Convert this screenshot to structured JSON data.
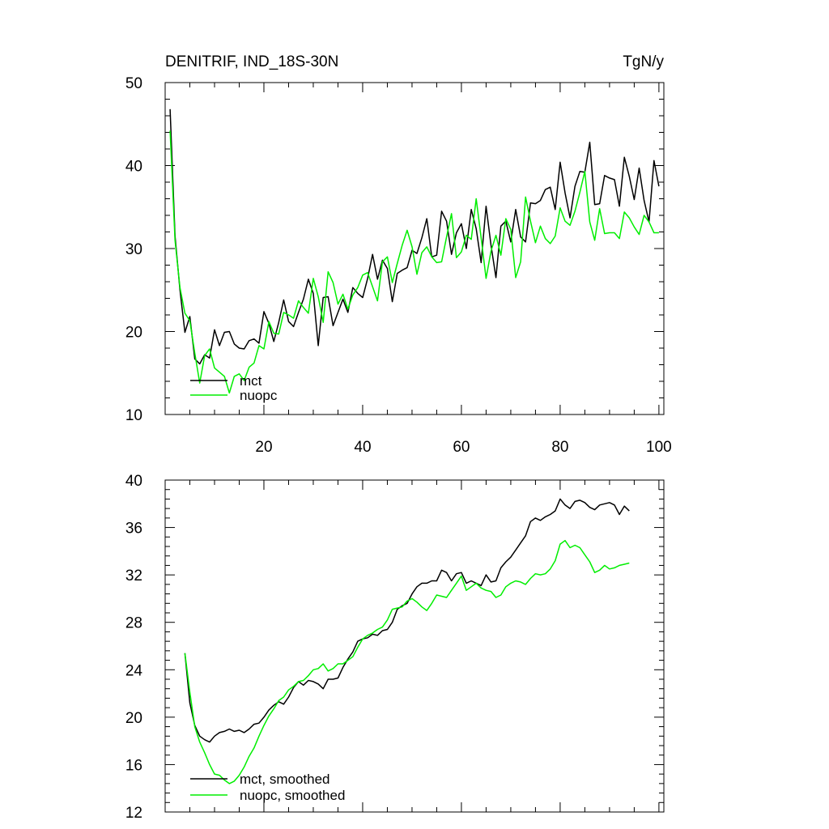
{
  "chart_data": [
    {
      "type": "line",
      "title": "DENITRIF, IND_18S-30N",
      "units": "TgN/y",
      "xlim": [
        0,
        101
      ],
      "ylim": [
        10,
        50
      ],
      "xticks": [
        20,
        40,
        60,
        80,
        100
      ],
      "xtick_labels": [
        "20",
        "40",
        "60",
        "80",
        "100"
      ],
      "yticks": [
        10,
        20,
        30,
        40,
        50
      ],
      "ytick_labels": [
        "10",
        "20",
        "30",
        "40",
        "50"
      ],
      "legend_position": "bottom-left",
      "series": [
        {
          "name": "mct",
          "color": "#000000",
          "values": [
            46.8,
            31.5,
            25.0,
            19.9,
            21.8,
            16.7,
            16.1,
            17.2,
            16.8,
            20.2,
            18.3,
            19.9,
            20.0,
            18.5,
            18.0,
            17.9,
            18.9,
            19.1,
            18.6,
            22.4,
            21.0,
            18.8,
            21.1,
            23.8,
            21.2,
            20.6,
            22.3,
            23.9,
            26.3,
            24.6,
            18.3,
            24.1,
            24.2,
            20.7,
            22.3,
            23.9,
            22.3,
            25.3,
            24.6,
            24.1,
            26.4,
            29.3,
            26.3,
            28.6,
            27.6,
            23.6,
            27.0,
            27.4,
            27.7,
            29.8,
            29.4,
            31.3,
            33.6,
            29.0,
            29.2,
            34.5,
            33.3,
            29.3,
            31.9,
            33.0,
            30.0,
            34.7,
            32.4,
            28.3,
            35.1,
            30.4,
            26.5,
            32.7,
            33.3,
            30.8,
            34.7,
            31.4,
            30.8,
            35.5,
            35.4,
            35.8,
            37.1,
            37.4,
            34.7,
            40.4,
            36.7,
            33.7,
            37.5,
            39.3,
            39.2,
            42.8,
            35.3,
            35.4,
            38.8,
            38.5,
            38.3,
            35.1,
            41.0,
            38.7,
            35.9,
            39.7,
            35.8,
            33.2,
            40.6,
            37.5
          ]
        },
        {
          "name": "nuopc",
          "color": "#00ee00",
          "values": [
            44.2,
            31.0,
            25.3,
            22.2,
            21.3,
            17.4,
            13.8,
            17.1,
            17.9,
            15.6,
            15.1,
            14.6,
            12.6,
            14.6,
            14.9,
            14.1,
            15.7,
            16.2,
            18.3,
            17.9,
            21.2,
            19.8,
            19.7,
            22.3,
            22.0,
            21.6,
            23.7,
            22.9,
            22.2,
            26.4,
            24.2,
            21.1,
            27.2,
            25.9,
            23.3,
            24.5,
            22.7,
            24.4,
            25.3,
            26.8,
            27.1,
            25.4,
            23.7,
            28.4,
            29.0,
            25.9,
            28.2,
            30.4,
            32.2,
            30.2,
            26.9,
            29.5,
            30.2,
            29.0,
            28.3,
            28.4,
            31.4,
            34.2,
            28.9,
            29.6,
            31.6,
            31.1,
            36.0,
            31.3,
            26.4,
            29.7,
            31.6,
            29.2,
            33.6,
            32.3,
            26.5,
            28.4,
            36.2,
            33.3,
            30.7,
            32.7,
            31.2,
            30.6,
            31.5,
            34.9,
            33.3,
            32.8,
            34.5,
            36.8,
            39.3,
            33.2,
            31.0,
            34.8,
            31.8,
            31.9,
            31.9,
            31.2,
            34.4,
            33.7,
            32.6,
            31.7,
            34.0,
            33.2,
            31.9,
            31.9
          ]
        }
      ]
    },
    {
      "type": "line",
      "title": "",
      "xlim": [
        0,
        101
      ],
      "ylim": [
        12,
        40
      ],
      "xticks": [
        20,
        40,
        60,
        80,
        100
      ],
      "xtick_labels": [],
      "yticks": [
        12,
        16,
        20,
        24,
        28,
        32,
        36,
        40
      ],
      "ytick_labels": [
        "12",
        "16",
        "20",
        "24",
        "28",
        "32",
        "36",
        "40"
      ],
      "legend_position": "bottom-left",
      "series": [
        {
          "name": "mct, smoothed",
          "color": "#000000",
          "x_start": 4,
          "values": [
            25.4,
            21.2,
            19.3,
            18.4,
            18.1,
            17.9,
            18.4,
            18.7,
            18.8,
            19.0,
            18.8,
            18.9,
            18.7,
            19.0,
            19.4,
            19.5,
            20.0,
            20.6,
            21.0,
            21.3,
            21.1,
            21.7,
            22.5,
            23.0,
            22.7,
            23.1,
            23.0,
            22.8,
            22.4,
            23.2,
            23.2,
            23.3,
            24.2,
            24.9,
            25.5,
            26.4,
            26.6,
            26.7,
            27.0,
            26.9,
            27.3,
            27.4,
            28.0,
            29.1,
            29.4,
            29.6,
            30.4,
            31.0,
            31.3,
            31.3,
            31.5,
            31.5,
            32.4,
            32.2,
            31.5,
            32.1,
            32.2,
            31.3,
            31.5,
            31.3,
            31.1,
            32.0,
            31.4,
            31.5,
            32.6,
            33.1,
            33.5,
            34.1,
            34.7,
            35.3,
            36.5,
            36.8,
            36.6,
            36.9,
            37.1,
            37.4,
            38.4,
            37.9,
            37.6,
            38.2,
            38.3,
            38.1,
            37.7,
            37.5,
            37.9,
            38.0,
            38.1,
            37.9,
            37.1,
            37.8,
            37.4
          ]
        },
        {
          "name": "nuopc, smoothed",
          "color": "#00ee00",
          "x_start": 4,
          "values": [
            25.4,
            22.1,
            19.2,
            17.9,
            17.0,
            16.0,
            15.2,
            15.1,
            14.7,
            14.4,
            14.6,
            15.1,
            15.8,
            16.7,
            17.4,
            18.4,
            19.3,
            20.1,
            20.7,
            21.4,
            21.7,
            22.3,
            22.6,
            23.0,
            23.1,
            23.5,
            24.0,
            24.1,
            24.5,
            23.9,
            24.1,
            24.5,
            24.5,
            24.8,
            25.1,
            25.9,
            26.6,
            26.9,
            27.1,
            27.4,
            27.6,
            28.2,
            29.1,
            29.2,
            29.3,
            29.8,
            30.0,
            29.7,
            29.3,
            29.0,
            29.6,
            30.3,
            30.2,
            30.1,
            30.7,
            31.3,
            31.9,
            30.7,
            31.0,
            31.3,
            30.9,
            30.7,
            30.6,
            30.1,
            30.3,
            31.0,
            31.3,
            31.5,
            31.4,
            31.2,
            31.7,
            32.1,
            32.0,
            32.1,
            32.5,
            33.2,
            34.6,
            34.9,
            34.3,
            34.5,
            34.3,
            33.7,
            33.1,
            32.2,
            32.4,
            32.8,
            32.5,
            32.6,
            32.8,
            32.9,
            33.0
          ]
        }
      ]
    }
  ]
}
